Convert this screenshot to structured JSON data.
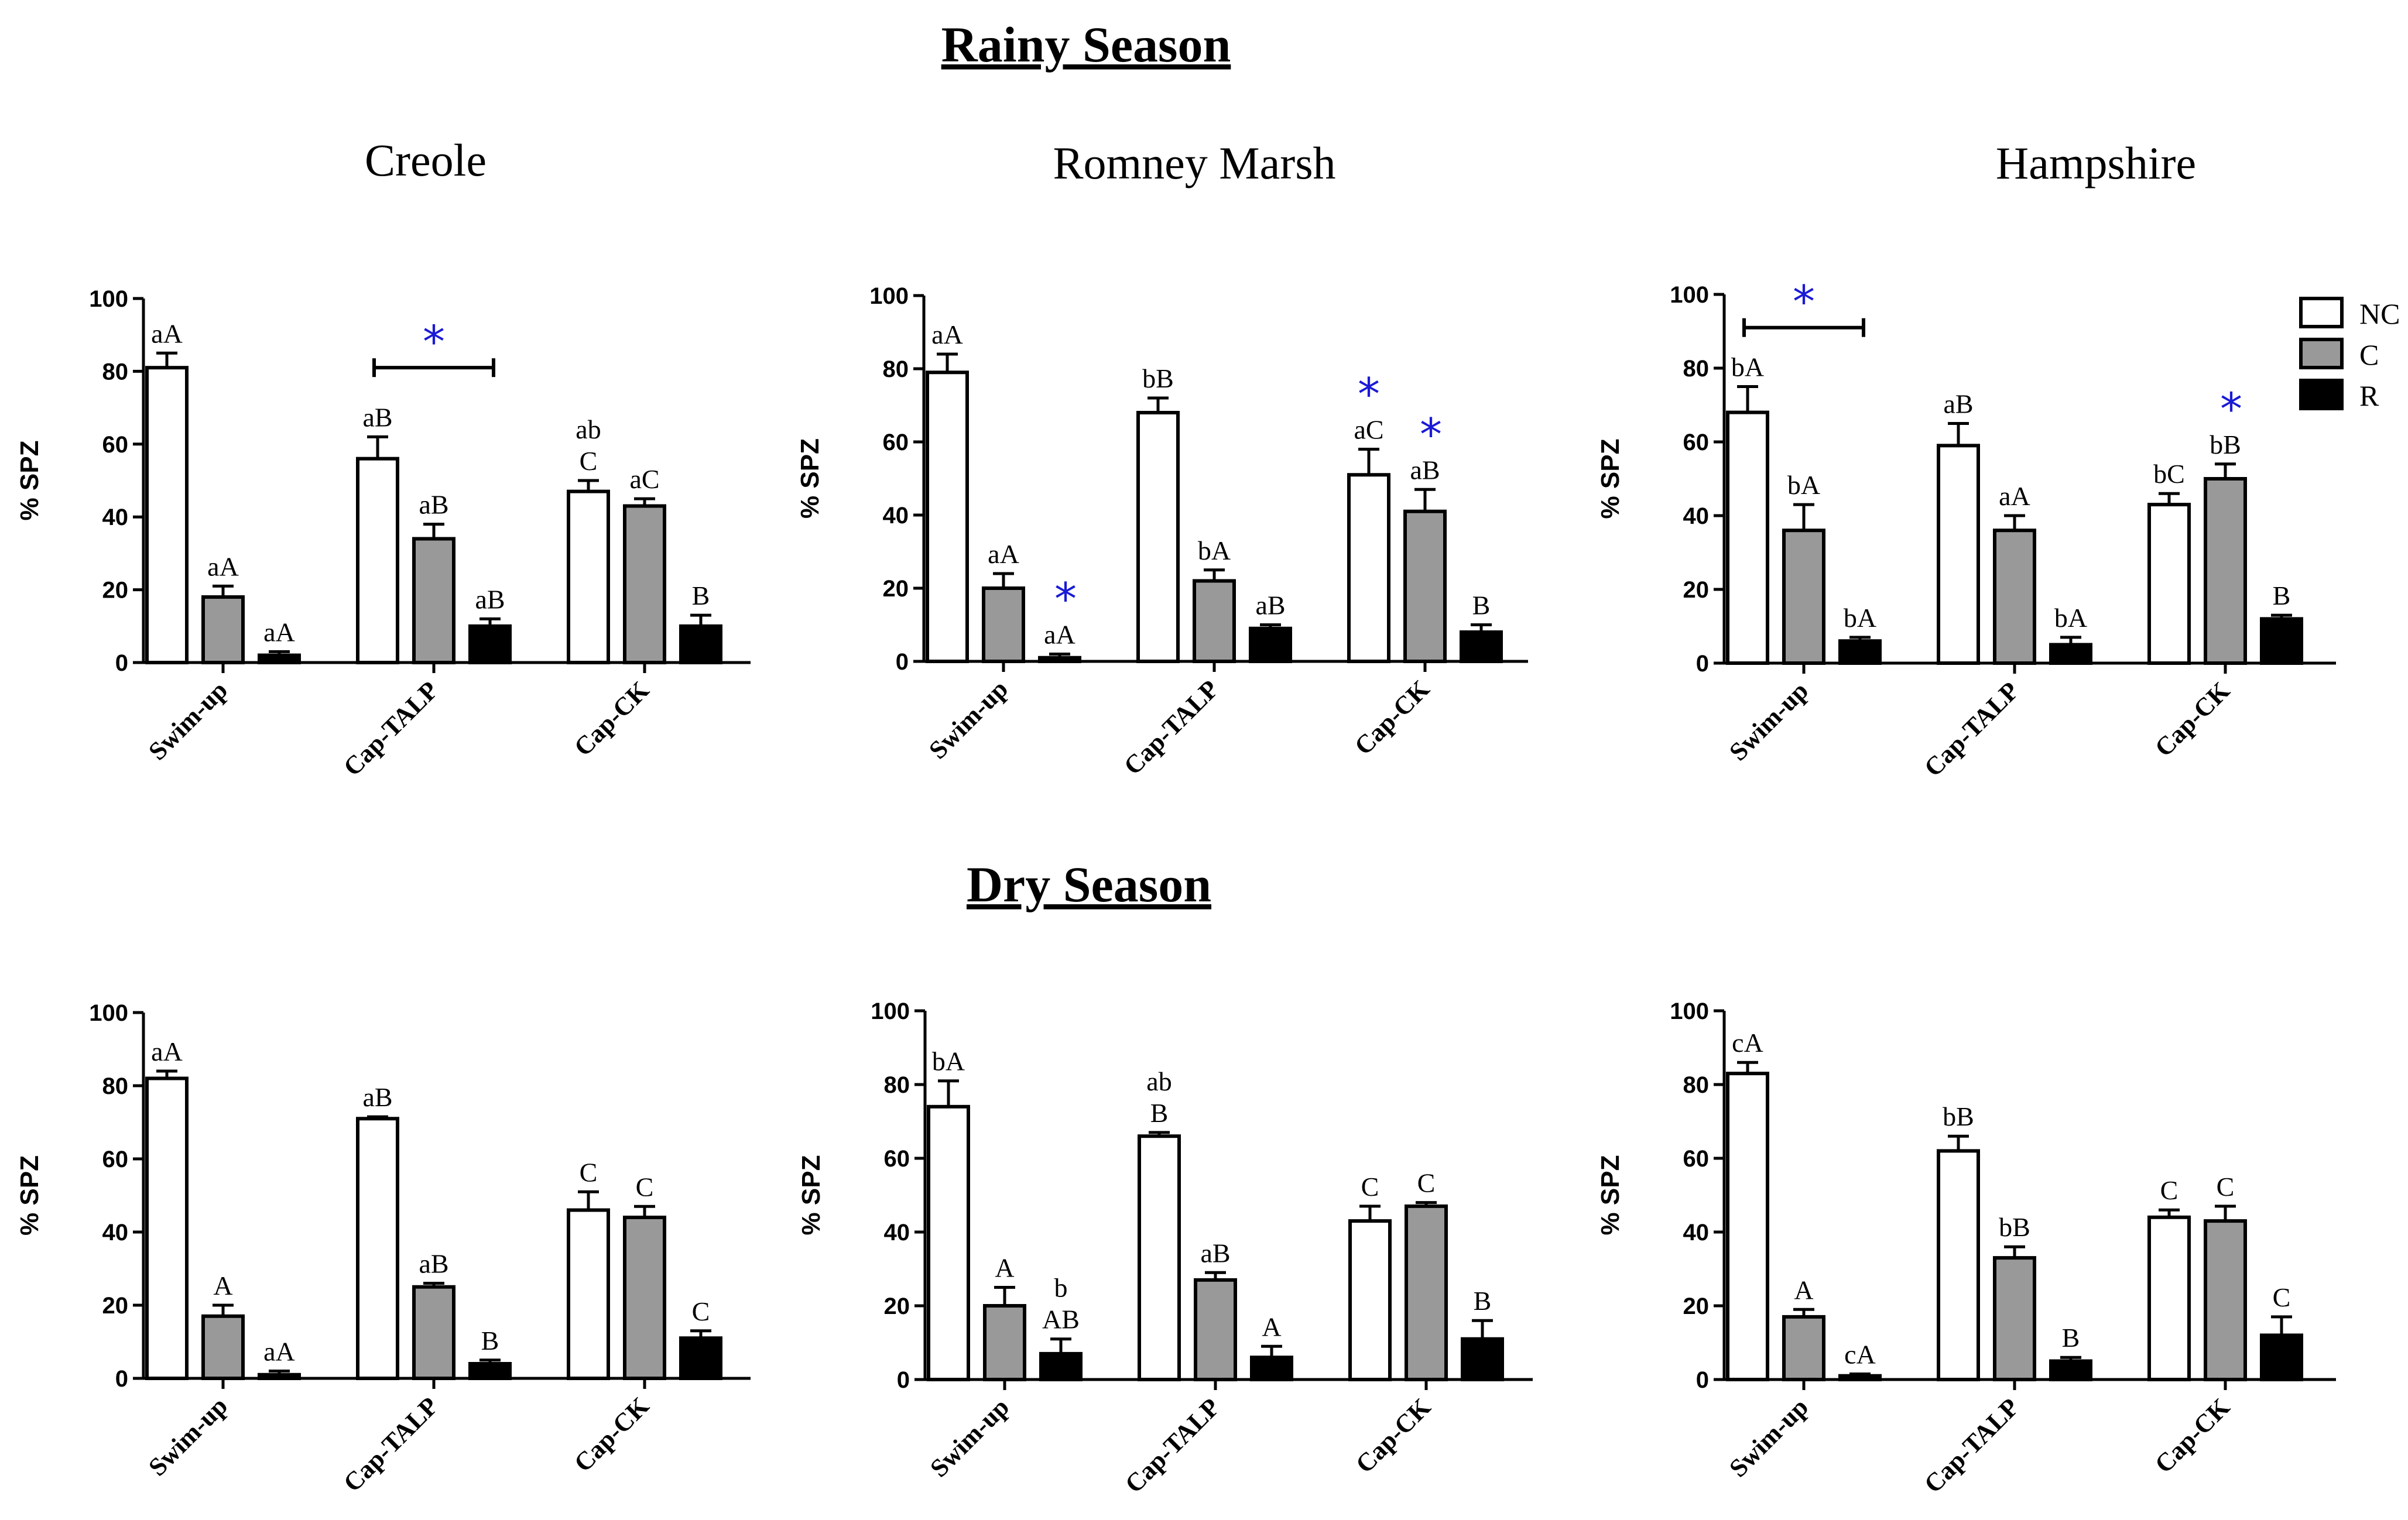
{
  "titles": {
    "rainy": "Rainy Season",
    "dry": "Dry Season"
  },
  "legend": [
    {
      "name": "NC",
      "color": "#ffffff"
    },
    {
      "name": "C",
      "color": "#999999"
    },
    {
      "name": "R",
      "color": "#000000"
    }
  ],
  "colors": {
    "NC": "#ffffff",
    "C": "#999999",
    "R": "#000000",
    "star": "#1a1ad6"
  },
  "chart_data": [
    {
      "type": "bar",
      "season": "Rainy Season",
      "title": "Creole",
      "ylabel": "% SPZ",
      "ylim": [
        0,
        100
      ],
      "yticks": [
        0,
        20,
        40,
        60,
        80,
        100
      ],
      "categories": [
        "Swim-up",
        "Cap-TALP",
        "Cap-CK"
      ],
      "series": [
        {
          "name": "NC",
          "values": [
            81,
            56,
            47
          ],
          "errors": [
            4,
            6,
            3
          ],
          "labels": [
            "aA",
            "aB",
            "ab\nC"
          ]
        },
        {
          "name": "C",
          "values": [
            18,
            34,
            43
          ],
          "errors": [
            3,
            4,
            2
          ],
          "labels": [
            "aA",
            "aB",
            "aC"
          ]
        },
        {
          "name": "R",
          "values": [
            2,
            10,
            10
          ],
          "errors": [
            1,
            2,
            3
          ],
          "labels": [
            "aA",
            "aB",
            "B"
          ]
        }
      ],
      "significance_brackets": [
        {
          "category": "Cap-TALP",
          "from": "NC",
          "to": "R",
          "y": 81,
          "symbol": "*"
        }
      ],
      "significance_stars": []
    },
    {
      "type": "bar",
      "season": "Rainy Season",
      "title": "Romney Marsh",
      "ylabel": "% SPZ",
      "ylim": [
        0,
        100
      ],
      "yticks": [
        0,
        20,
        40,
        60,
        80,
        100
      ],
      "categories": [
        "Swim-up",
        "Cap-TALP",
        "Cap-CK"
      ],
      "series": [
        {
          "name": "NC",
          "values": [
            79,
            68,
            51
          ],
          "errors": [
            5,
            4,
            7
          ],
          "labels": [
            "aA",
            "bB",
            "aC"
          ]
        },
        {
          "name": "C",
          "values": [
            20,
            22,
            41
          ],
          "errors": [
            4,
            3,
            6
          ],
          "labels": [
            "aA",
            "bA",
            "aB"
          ]
        },
        {
          "name": "R",
          "values": [
            1,
            9,
            8
          ],
          "errors": [
            1,
            1,
            2
          ],
          "labels": [
            "aA",
            "aB",
            "B"
          ]
        }
      ],
      "significance_brackets": [],
      "significance_stars": [
        {
          "category": "Swim-up",
          "series": "R",
          "symbol": "*"
        },
        {
          "category": "Cap-CK",
          "series": "NC",
          "symbol": "*"
        },
        {
          "category": "Cap-CK",
          "series": "C",
          "symbol": "*"
        }
      ]
    },
    {
      "type": "bar",
      "season": "Rainy Season",
      "title": "Hampshire",
      "ylabel": "% SPZ",
      "ylim": [
        0,
        100
      ],
      "yticks": [
        0,
        20,
        40,
        60,
        80,
        100
      ],
      "categories": [
        "Swim-up",
        "Cap-TALP",
        "Cap-CK"
      ],
      "series": [
        {
          "name": "NC",
          "values": [
            68,
            59,
            43
          ],
          "errors": [
            7,
            6,
            3
          ],
          "labels": [
            "bA",
            "aB",
            "bC"
          ]
        },
        {
          "name": "C",
          "values": [
            36,
            36,
            50
          ],
          "errors": [
            7,
            4,
            4
          ],
          "labels": [
            "bA",
            "aA",
            "bB"
          ]
        },
        {
          "name": "R",
          "values": [
            6,
            5,
            12
          ],
          "errors": [
            1,
            2,
            1
          ],
          "labels": [
            "bA",
            "bA",
            "B"
          ]
        }
      ],
      "significance_brackets": [
        {
          "category": "Swim-up",
          "from": "NC",
          "to": "R",
          "y": 91,
          "symbol": "*"
        }
      ],
      "significance_stars": [
        {
          "category": "Cap-CK",
          "series": "C",
          "symbol": "*"
        }
      ]
    },
    {
      "type": "bar",
      "season": "Dry Season",
      "title": "",
      "ylabel": "% SPZ",
      "ylim": [
        0,
        100
      ],
      "yticks": [
        0,
        20,
        40,
        60,
        80,
        100
      ],
      "categories": [
        "Swim-up",
        "Cap-TALP",
        "Cap-CK"
      ],
      "series": [
        {
          "name": "NC",
          "values": [
            82,
            71,
            46
          ],
          "errors": [
            2,
            0.5,
            5
          ],
          "labels": [
            "aA",
            "aB",
            "C"
          ]
        },
        {
          "name": "C",
          "values": [
            17,
            25,
            44
          ],
          "errors": [
            3,
            1,
            3
          ],
          "labels": [
            "A",
            "aB",
            "C"
          ]
        },
        {
          "name": "R",
          "values": [
            1,
            4,
            11
          ],
          "errors": [
            1,
            1,
            2
          ],
          "labels": [
            "aA",
            "B",
            "C"
          ]
        }
      ],
      "significance_brackets": [],
      "significance_stars": []
    },
    {
      "type": "bar",
      "season": "Dry Season",
      "title": "",
      "ylabel": "% SPZ",
      "ylim": [
        0,
        100
      ],
      "yticks": [
        0,
        20,
        40,
        60,
        80,
        100
      ],
      "categories": [
        "Swim-up",
        "Cap-TALP",
        "Cap-CK"
      ],
      "series": [
        {
          "name": "NC",
          "values": [
            74,
            66,
            43
          ],
          "errors": [
            7,
            1,
            4
          ],
          "labels": [
            "bA",
            "ab\nB",
            "C"
          ]
        },
        {
          "name": "C",
          "values": [
            20,
            27,
            47
          ],
          "errors": [
            5,
            2,
            1
          ],
          "labels": [
            "A",
            "aB",
            "C"
          ]
        },
        {
          "name": "R",
          "values": [
            7,
            6,
            11
          ],
          "errors": [
            4,
            3,
            5
          ],
          "labels": [
            "b\nAB",
            "A",
            "B"
          ]
        }
      ],
      "significance_brackets": [],
      "significance_stars": []
    },
    {
      "type": "bar",
      "season": "Dry Season",
      "title": "",
      "ylabel": "% SPZ",
      "ylim": [
        0,
        100
      ],
      "yticks": [
        0,
        20,
        40,
        60,
        80,
        100
      ],
      "categories": [
        "Swim-up",
        "Cap-TALP",
        "Cap-CK"
      ],
      "series": [
        {
          "name": "NC",
          "values": [
            83,
            62,
            44
          ],
          "errors": [
            3,
            4,
            2
          ],
          "labels": [
            "cA",
            "bB",
            "C"
          ]
        },
        {
          "name": "C",
          "values": [
            17,
            33,
            43
          ],
          "errors": [
            2,
            3,
            4
          ],
          "labels": [
            "A",
            "bB",
            "C"
          ]
        },
        {
          "name": "R",
          "values": [
            1,
            5,
            12
          ],
          "errors": [
            0.5,
            1,
            5
          ],
          "labels": [
            "cA",
            "B",
            "C"
          ]
        }
      ],
      "significance_brackets": [],
      "significance_stars": []
    }
  ]
}
